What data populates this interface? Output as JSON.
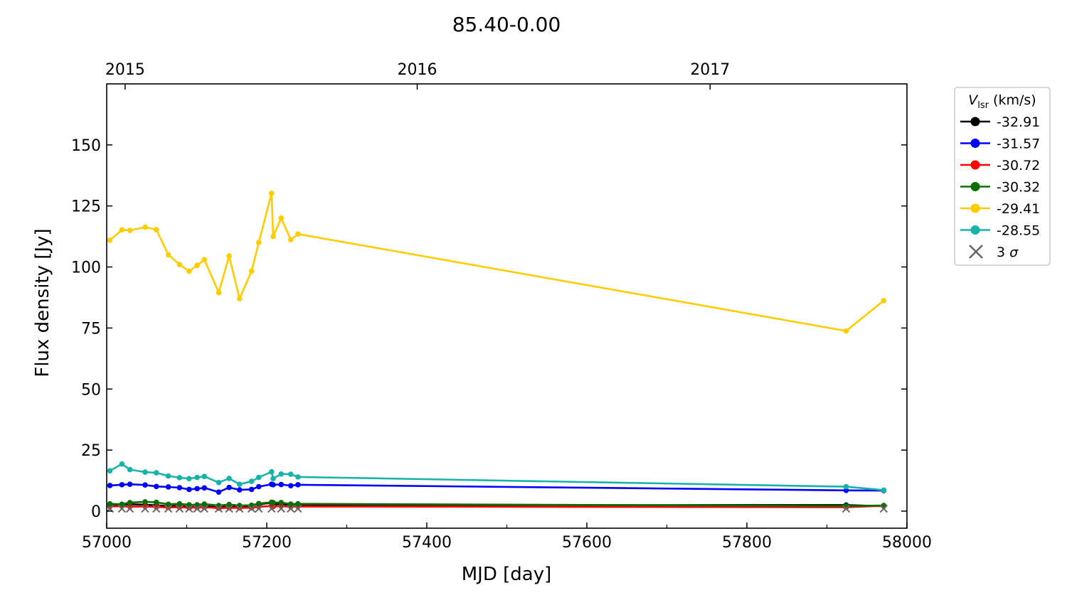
{
  "chart_data": {
    "type": "line",
    "title": "85.40-0.00",
    "xlabel": "MJD [day]",
    "ylabel": "Flux density [Jy]",
    "xlim": [
      57000,
      58000
    ],
    "ylim": [
      -7,
      175
    ],
    "xticks": [
      57000,
      57200,
      57400,
      57600,
      57800,
      58000
    ],
    "yticks": [
      0,
      25,
      50,
      75,
      100,
      125,
      150
    ],
    "top_axis": {
      "ticks": [
        57023,
        57388,
        57754
      ],
      "labels": [
        "2015",
        "2016",
        "2017"
      ]
    },
    "grid": false,
    "legend": {
      "placement": "outside-right-top",
      "title_main": "V",
      "title_sub": "lsr",
      "title_unit": " (km/s)"
    },
    "x": [
      57004,
      57019,
      57029,
      57048,
      57062,
      57077,
      57091,
      57103,
      57113,
      57122,
      57140,
      57153,
      57166,
      57181,
      57190,
      57206,
      57208,
      57218,
      57230,
      57239,
      57924,
      57971
    ],
    "series": [
      {
        "name": "-32.91",
        "color": "#000000",
        "values": [
          2.3,
          2.4,
          2.8,
          2.6,
          2.4,
          2.0,
          2.2,
          1.8,
          2.0,
          2.1,
          1.6,
          2.0,
          1.8,
          1.9,
          2.8,
          3.4,
          2.6,
          3.0,
          2.3,
          2.4,
          2.5,
          2.0
        ]
      },
      {
        "name": "-31.57",
        "color": "#0000ff",
        "values": [
          10.5,
          10.8,
          11.0,
          10.7,
          10.1,
          9.9,
          9.6,
          8.9,
          9.2,
          9.5,
          7.8,
          9.7,
          8.7,
          8.9,
          10.0,
          11.0,
          10.8,
          10.9,
          10.4,
          10.8,
          8.5,
          8.4
        ]
      },
      {
        "name": "-30.72",
        "color": "#ff0000",
        "values": [
          1.9,
          2.0,
          1.8,
          1.9,
          1.7,
          1.5,
          1.6,
          1.4,
          1.5,
          1.6,
          1.2,
          1.4,
          1.3,
          1.4,
          1.8,
          2.1,
          1.9,
          2.0,
          1.8,
          1.9,
          1.6,
          2.2
        ]
      },
      {
        "name": "-30.32",
        "color": "#0b6e00",
        "values": [
          3.0,
          2.8,
          3.5,
          3.8,
          3.6,
          2.8,
          3.0,
          2.6,
          2.6,
          2.9,
          2.3,
          2.7,
          2.3,
          2.4,
          3.1,
          3.6,
          3.5,
          3.5,
          2.9,
          3.0,
          2.1,
          2.3
        ]
      },
      {
        "name": "-29.41",
        "color": "#ffcc00",
        "values": [
          111.0,
          115.2,
          115.0,
          116.3,
          115.3,
          105.0,
          101.0,
          98.3,
          100.7,
          103.0,
          89.5,
          104.5,
          87.0,
          98.3,
          110.0,
          130.2,
          112.5,
          120.0,
          111.2,
          113.5,
          73.8,
          86.2
        ]
      },
      {
        "name": "-28.55",
        "color": "#17b3aa",
        "values": [
          16.5,
          19.3,
          17.0,
          16.0,
          15.7,
          14.4,
          13.7,
          13.3,
          13.8,
          14.2,
          11.7,
          13.4,
          11.0,
          12.2,
          13.8,
          16.1,
          13.3,
          15.2,
          15.1,
          14.0,
          10.0,
          8.6
        ]
      }
    ],
    "three_sigma": {
      "name": "3 σ",
      "label_main": "3 ",
      "label_sym": "σ",
      "color": "#666666",
      "x": [
        57004,
        57019,
        57029,
        57048,
        57062,
        57077,
        57091,
        57103,
        57113,
        57122,
        57140,
        57153,
        57166,
        57181,
        57190,
        57206,
        57218,
        57230,
        57239,
        57924,
        57971
      ],
      "values": [
        1.0,
        1.0,
        1.0,
        1.0,
        1.0,
        1.0,
        1.0,
        1.0,
        1.0,
        1.0,
        1.0,
        1.0,
        1.0,
        1.0,
        1.0,
        1.0,
        1.0,
        1.0,
        1.0,
        1.0,
        1.0
      ]
    }
  }
}
